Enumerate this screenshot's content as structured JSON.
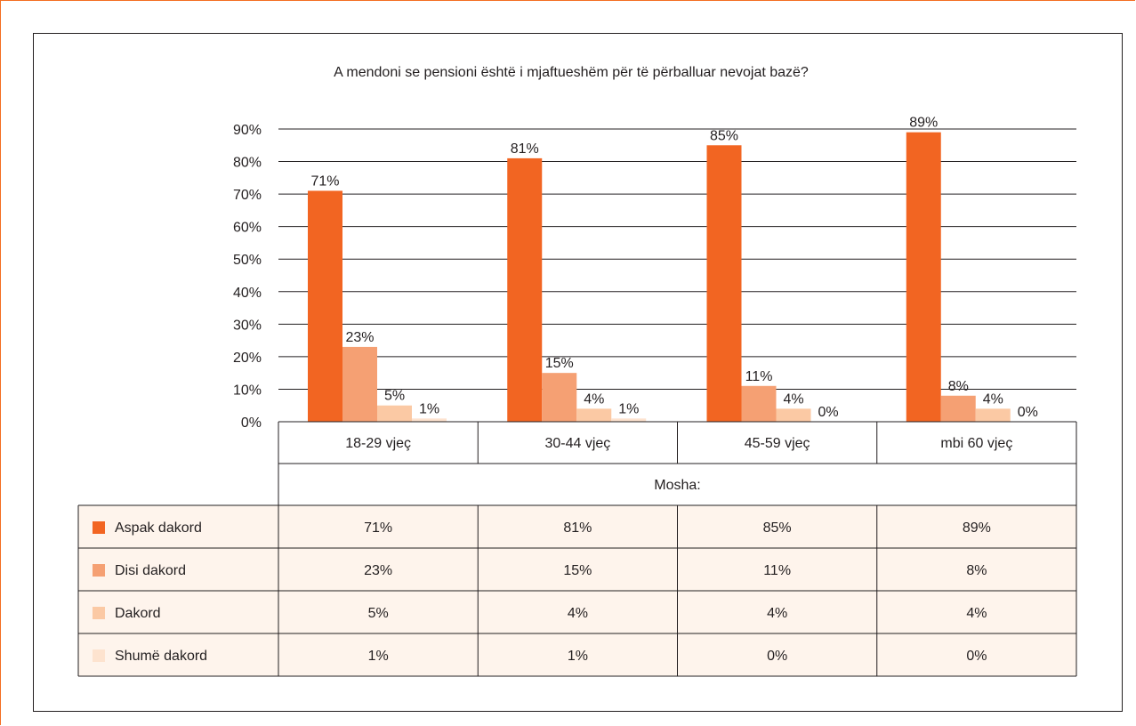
{
  "chart_data": {
    "type": "bar",
    "title": "A mendoni se pensioni është i mjaftueshëm për të përballuar nevojat bazë?",
    "xlabel": "Mosha:",
    "ylabel": "",
    "categories": [
      "18-29 vjeç",
      "30-44 vjeç",
      "45-59 vjeç",
      "mbi 60 vjeç"
    ],
    "ylim": [
      0,
      90
    ],
    "yticks": [
      0,
      10,
      20,
      30,
      40,
      50,
      60,
      70,
      80,
      90
    ],
    "ytick_labels": [
      "0%",
      "10%",
      "20%",
      "30%",
      "40%",
      "50%",
      "60%",
      "70%",
      "80%",
      "90%"
    ],
    "grid": true,
    "legend": "table-left",
    "series": [
      {
        "name": "Aspak dakord",
        "color": "#f26522",
        "values": [
          71,
          81,
          85,
          89
        ],
        "labels": [
          "71%",
          "81%",
          "85%",
          "89%"
        ]
      },
      {
        "name": "Disi dakord",
        "color": "#f5a073",
        "values": [
          23,
          15,
          11,
          8
        ],
        "labels": [
          "23%",
          "15%",
          "11%",
          "8%"
        ]
      },
      {
        "name": "Dakord",
        "color": "#fbc9a4",
        "values": [
          5,
          4,
          4,
          4
        ],
        "labels": [
          "5%",
          "4%",
          "4%",
          "4%"
        ]
      },
      {
        "name": "Shumë dakord",
        "color": "#fde3cf",
        "values": [
          1,
          1,
          0,
          0
        ],
        "labels": [
          "1%",
          "1%",
          "0%",
          "0%"
        ]
      }
    ]
  },
  "colors": {
    "accent": "#f36e21",
    "table_fill": "#fef4ec",
    "grid": "#231f20"
  }
}
